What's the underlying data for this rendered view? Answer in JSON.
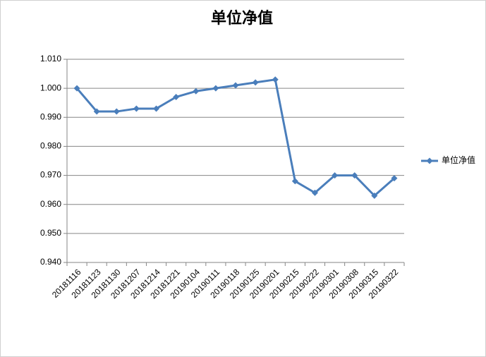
{
  "chart_data": {
    "type": "line",
    "title": "单位净值",
    "categories": [
      "20181116",
      "20181123",
      "20181130",
      "20181207",
      "20181214",
      "20181221",
      "20190104",
      "20190111",
      "20190118",
      "20190125",
      "20190201",
      "20190215",
      "20190222",
      "20190301",
      "20190308",
      "20190315",
      "20190322"
    ],
    "series": [
      {
        "name": "单位净值",
        "color": "#4a7ebb",
        "values": [
          1.0,
          0.992,
          0.992,
          0.993,
          0.993,
          0.997,
          0.999,
          1.0,
          1.001,
          1.002,
          1.003,
          0.968,
          0.964,
          0.97,
          0.97,
          0.963,
          0.969
        ]
      }
    ],
    "ylim": [
      0.94,
      1.01
    ],
    "yticks": [
      {
        "value": 0.94,
        "label": "0.940"
      },
      {
        "value": 0.95,
        "label": "0.950"
      },
      {
        "value": 0.96,
        "label": "0.960"
      },
      {
        "value": 0.97,
        "label": "0.970"
      },
      {
        "value": 0.98,
        "label": "0.980"
      },
      {
        "value": 0.99,
        "label": "0.990"
      },
      {
        "value": 1.0,
        "label": "1.000"
      },
      {
        "value": 1.01,
        "label": "1.010"
      }
    ],
    "grid": true,
    "legend": "right"
  }
}
